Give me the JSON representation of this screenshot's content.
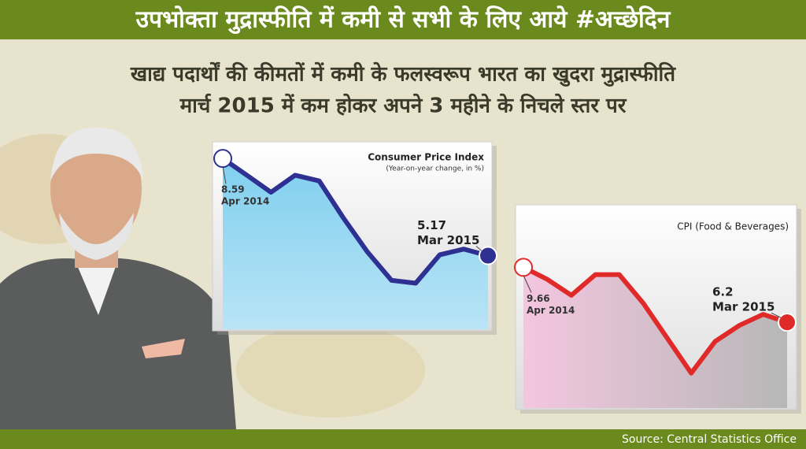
{
  "header": {
    "title": "उपभोक्ता मुद्रास्फीति में कमी से सभी के लिए आये #अच्छेदिन",
    "subtitle_lines": [
      "खाद्य पदार्थों की कीमतों में कमी के फलस्वरूप भारत का खुदरा मुद्रास्फीति",
      "मार्च 2015 में कम होकर अपने 3 महीने के निचले स्तर पर"
    ]
  },
  "chart_data": [
    {
      "type": "line",
      "title": "Consumer Price Index",
      "subtitle": "(Year-on-year change, in %)",
      "categories": [
        "Apr 2014",
        null,
        null,
        null,
        null,
        null,
        null,
        null,
        null,
        null,
        null,
        "Mar 2015"
      ],
      "values": [
        8.59,
        8.0,
        7.4,
        8.0,
        7.8,
        6.5,
        5.3,
        4.3,
        4.2,
        5.2,
        5.4,
        5.17
      ],
      "color": "#2e3191",
      "ylim": [
        2.8,
        8.9
      ]
    },
    {
      "type": "line",
      "title": "CPI (Food & Beverages)",
      "categories": [
        "Apr 2014",
        null,
        null,
        null,
        null,
        null,
        null,
        null,
        null,
        null,
        null,
        "Mar 2015"
      ],
      "values": [
        9.66,
        8.9,
        7.9,
        9.2,
        9.2,
        7.4,
        5.2,
        3.0,
        5.0,
        6.0,
        6.7,
        6.2
      ],
      "color": "#e02a2a",
      "ylim": [
        1.2,
        13.1
      ]
    }
  ],
  "source": "Source: Central Statistics Office"
}
